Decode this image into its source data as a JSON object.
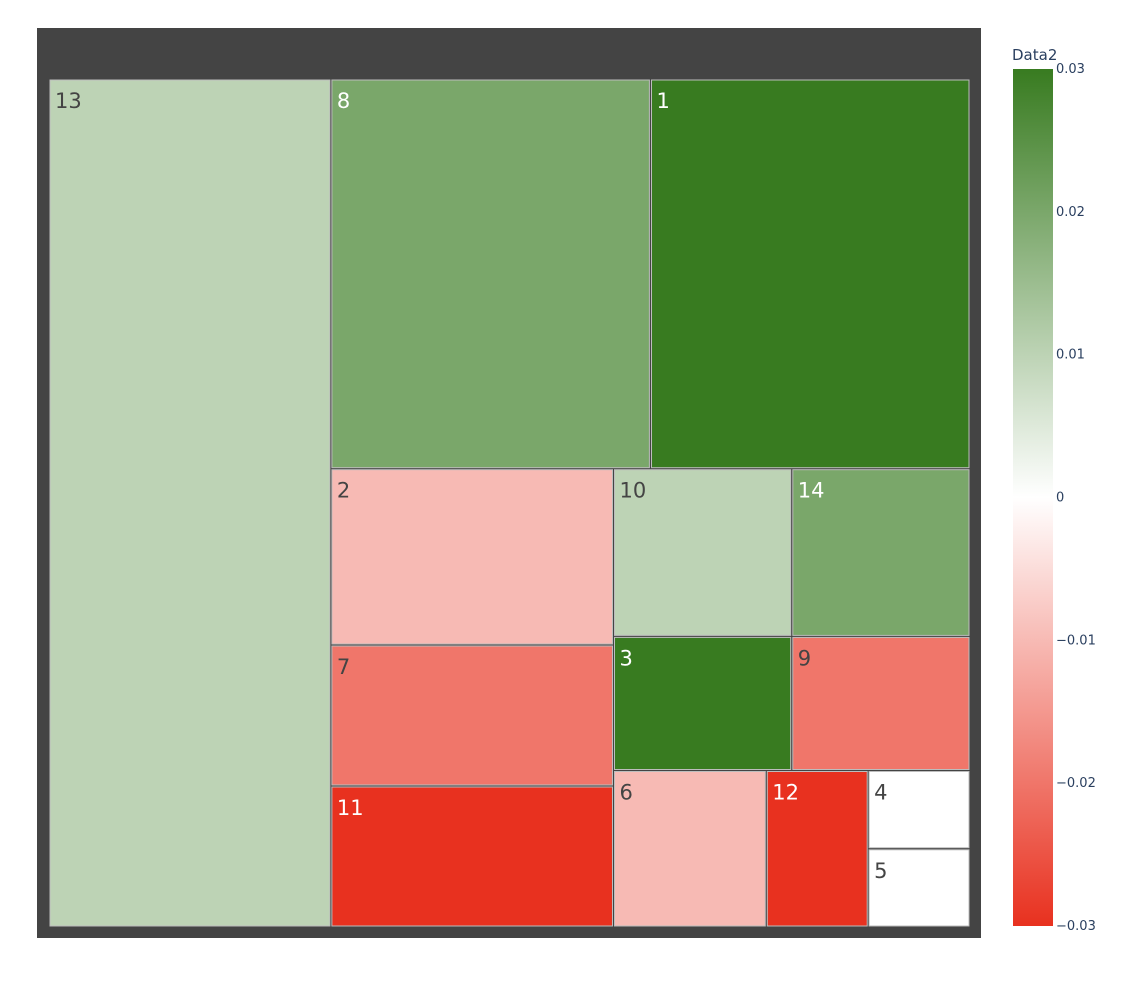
{
  "chart_data": {
    "type": "treemap",
    "color_key": "Data2",
    "colorbar": {
      "title": "Data2",
      "range": [
        -0.03,
        0.03
      ],
      "ticks": [
        "0.03",
        "0.02",
        "0.01",
        "0",
        "−0.01",
        "−0.02",
        "−0.03"
      ],
      "tick_values": [
        0.03,
        0.02,
        0.01,
        0,
        -0.01,
        -0.02,
        -0.03
      ],
      "colorscale": [
        "#e8311f",
        "#ffffff",
        "#387b20"
      ]
    },
    "tiles": [
      {
        "label": "13",
        "value": 2.4,
        "data2": 0.01
      },
      {
        "label": "8",
        "value": 1.25,
        "data2": 0.02
      },
      {
        "label": "1",
        "value": 1.25,
        "data2": 0.03
      },
      {
        "label": "2",
        "value": 0.5,
        "data2": -0.01
      },
      {
        "label": "10",
        "value": 0.3,
        "data2": 0.01
      },
      {
        "label": "14",
        "value": 0.3,
        "data2": 0.02
      },
      {
        "label": "7",
        "value": 0.4,
        "data2": -0.02
      },
      {
        "label": "3",
        "value": 0.24,
        "data2": 0.03
      },
      {
        "label": "9",
        "value": 0.24,
        "data2": -0.02
      },
      {
        "label": "11",
        "value": 0.4,
        "data2": -0.03
      },
      {
        "label": "6",
        "value": 0.24,
        "data2": -0.01
      },
      {
        "label": "12",
        "value": 0.16,
        "data2": -0.03
      },
      {
        "label": "4",
        "value": 0.08,
        "data2": 0
      },
      {
        "label": "5",
        "value": 0.08,
        "data2": 0
      }
    ]
  }
}
